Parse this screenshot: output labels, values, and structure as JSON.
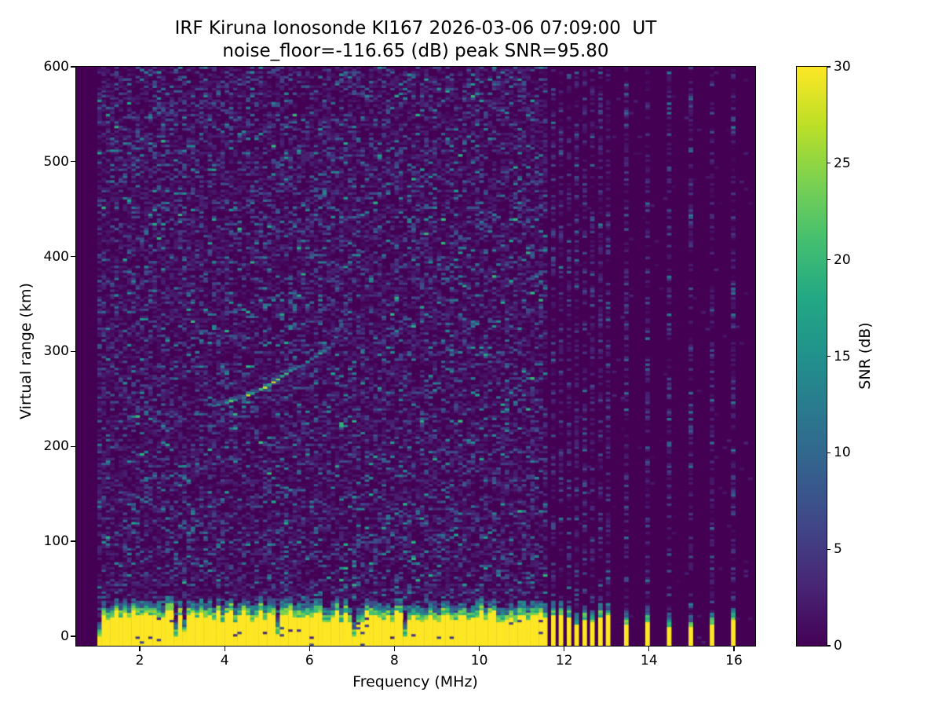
{
  "figure": {
    "title_line1": "IRF Kiruna Ionosonde KI167 2026-03-06 07:09:00  UT",
    "title_line2": "noise_floor=-116.65 (dB) peak SNR=95.80"
  },
  "chart_data": {
    "type": "heatmap",
    "title": "IRF Kiruna Ionosonde KI167 2026-03-06 07:09:00  UT",
    "subtitle": "noise_floor=-116.65 (dB) peak SNR=95.80",
    "xlabel": "Frequency (MHz)",
    "ylabel": "Virtual range (km)",
    "colorbar_label": "SNR (dB)",
    "noise_floor_db": -116.65,
    "peak_snr_db": 95.8,
    "station": "KI167",
    "timestamp_ut": "2026-03-06 07:09:00",
    "xlim": [
      0.5,
      16.5
    ],
    "ylim": [
      -10,
      600
    ],
    "clim": [
      0,
      30
    ],
    "xticks": [
      2,
      4,
      6,
      8,
      10,
      12,
      14,
      16
    ],
    "yticks": [
      0,
      100,
      200,
      300,
      400,
      500,
      600
    ],
    "colorbar_ticks": [
      0,
      5,
      10,
      15,
      20,
      25,
      30
    ],
    "colormap": "viridis",
    "viridis_stops": [
      [
        0.0,
        "#440154"
      ],
      [
        0.1,
        "#482475"
      ],
      [
        0.2,
        "#414487"
      ],
      [
        0.3,
        "#355f8d"
      ],
      [
        0.4,
        "#2a788e"
      ],
      [
        0.5,
        "#21918c"
      ],
      [
        0.6,
        "#22a884"
      ],
      [
        0.7,
        "#44bf70"
      ],
      [
        0.8,
        "#7ad151"
      ],
      [
        0.9,
        "#bddf26"
      ],
      [
        1.0,
        "#fde725"
      ]
    ],
    "seed": 7,
    "bins": {
      "freq_start": 1.0,
      "freq_step": 0.1,
      "range_step": 2.5
    },
    "sweep": {
      "continuous_end_mhz": 11.58,
      "dense_stripes_mhz": [
        11.74,
        11.92,
        12.11,
        12.29,
        12.48,
        12.66,
        12.85,
        13.03
      ],
      "sparse_stripes_mhz": [
        13.46,
        13.96,
        14.47,
        14.98,
        15.48,
        15.98
      ]
    },
    "ground_band": {
      "bottom_km": -10,
      "top_min_km": 14,
      "top_max_km": 27,
      "notch_probability": 0.07,
      "transition1_km": 7,
      "transition2_km": 14,
      "band_zone_top_km": 48,
      "dense_bar": {
        "top_min_km": 10,
        "top_max_km": 23
      },
      "sparse_bar": {
        "top_min_km": 6,
        "top_max_km": 17
      }
    },
    "noise": {
      "background_levels": [
        {
          "p": 0.42,
          "min": 0,
          "max": 0
        },
        {
          "p": 0.38,
          "min": 0.4,
          "max": 3
        },
        {
          "p": 0.155,
          "min": 3,
          "max": 8
        },
        {
          "p": 0.038,
          "min": 8,
          "max": 14
        },
        {
          "p": 0.007,
          "min": 14,
          "max": 20
        }
      ],
      "stripe_levels": [
        {
          "p": 0.54,
          "min": 0,
          "max": 0
        },
        {
          "p": 0.3,
          "min": 0.5,
          "max": 3
        },
        {
          "p": 0.125,
          "min": 3,
          "max": 7
        },
        {
          "p": 0.035,
          "min": 7,
          "max": 12
        }
      ],
      "between_stripe_p": 0.012
    },
    "trace": {
      "name": "ionospheric-echo",
      "points": [
        [
          3.33,
          233,
          11
        ],
        [
          3.75,
          242,
          9
        ],
        [
          3.85,
          243,
          13
        ],
        [
          3.95,
          244,
          11
        ],
        [
          4.05,
          245,
          16
        ],
        [
          4.15,
          247,
          22
        ],
        [
          4.25,
          248,
          14
        ],
        [
          4.35,
          250,
          12
        ],
        [
          4.45,
          251,
          18
        ],
        [
          4.55,
          253,
          26
        ],
        [
          4.65,
          255,
          16
        ],
        [
          4.75,
          257,
          14
        ],
        [
          4.85,
          259,
          20
        ],
        [
          4.95,
          261,
          27
        ],
        [
          5.05,
          264,
          18
        ],
        [
          5.15,
          267,
          29
        ],
        [
          5.25,
          270,
          24
        ],
        [
          5.35,
          273,
          17
        ],
        [
          5.45,
          276,
          21
        ],
        [
          5.55,
          279,
          15
        ],
        [
          5.65,
          281,
          12
        ],
        [
          5.75,
          283,
          10
        ],
        [
          5.85,
          284,
          8
        ],
        [
          6.05,
          291,
          9
        ],
        [
          6.15,
          294,
          13
        ],
        [
          6.25,
          297,
          17
        ],
        [
          6.35,
          300,
          12
        ],
        [
          6.45,
          303,
          9
        ],
        [
          6.55,
          307,
          7
        ],
        [
          6.62,
          314,
          9
        ],
        [
          6.68,
          322,
          6
        ],
        [
          6.73,
          331,
          8
        ],
        [
          6.78,
          341,
          6
        ],
        [
          6.85,
          350,
          8
        ],
        [
          6.95,
          360,
          5
        ],
        [
          7.05,
          373,
          7
        ],
        [
          7.15,
          388,
          6
        ],
        [
          7.25,
          404,
          7
        ],
        [
          7.33,
          420,
          5
        ],
        [
          7.55,
          425,
          9
        ]
      ]
    }
  }
}
